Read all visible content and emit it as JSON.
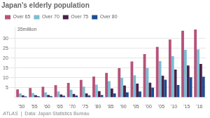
{
  "chart_data": {
    "type": "bar",
    "title": "Japan's elderly population",
    "y_label": "35million",
    "annotations": [
      "ATLAS",
      "|  Data: Japan Statistics Bureau"
    ],
    "categories": [
      "'50",
      "'55",
      "'60",
      "'65",
      "'70",
      "'75",
      "'80",
      "'85",
      "'90",
      "'95",
      "'00",
      "'05",
      "'10",
      "'15",
      "'16"
    ],
    "series": [
      {
        "name": "Over 65",
        "color": "#b5547a",
        "values": [
          4.1,
          4.8,
          5.4,
          6.2,
          7.4,
          8.9,
          10.6,
          12.5,
          14.9,
          18.3,
          22.0,
          25.7,
          29.5,
          33.9,
          34.6
        ]
      },
      {
        "name": "Over 70",
        "color": "#7bbdd4",
        "values": [
          2.0,
          2.2,
          2.5,
          3.0,
          3.9,
          5.5,
          6.5,
          8.3,
          10.0,
          11.2,
          15.0,
          18.5,
          21.0,
          24.2,
          24.5
        ]
      },
      {
        "name": "Over 75",
        "color": "#4a2248",
        "values": [
          1.0,
          1.1,
          1.2,
          1.5,
          1.7,
          2.0,
          3.2,
          4.5,
          6.0,
          7.0,
          7.5,
          11.0,
          14.2,
          16.2,
          17.0
        ]
      },
      {
        "name": "Over 80",
        "color": "#1e4d96",
        "values": [
          0.5,
          0.6,
          0.7,
          0.8,
          0.9,
          1.0,
          1.2,
          2.0,
          2.5,
          3.0,
          5.0,
          9.0,
          6.3,
          10.2,
          10.5
        ]
      }
    ],
    "ylim": [
      0,
      36
    ],
    "yticks": [
      5,
      10,
      15,
      20,
      25,
      30
    ],
    "grid": true,
    "legend": "top left"
  }
}
